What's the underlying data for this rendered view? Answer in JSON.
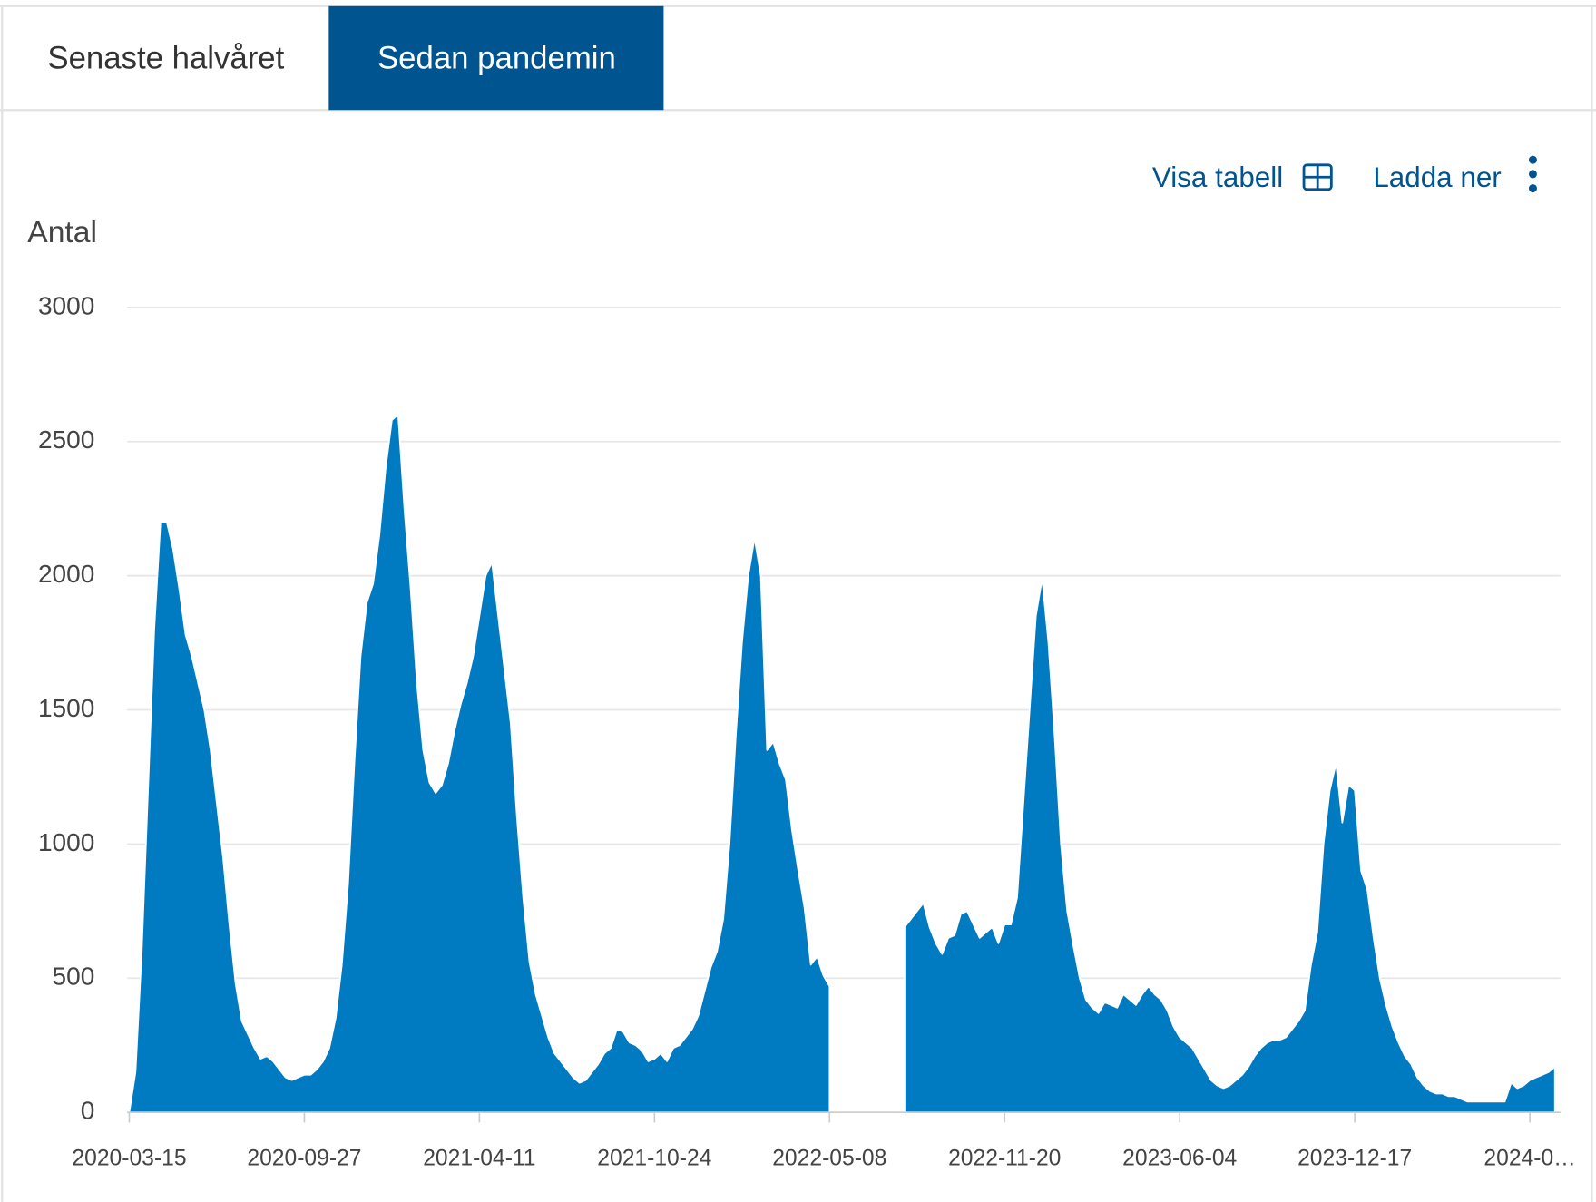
{
  "tabs": [
    "Senaste halvåret",
    "Sedan pandemin"
  ],
  "actions": [
    "Visa tabell",
    "Ladda ner"
  ],
  "chart_data": {
    "type": "area",
    "ylabel": "Antal",
    "color": "#007bc1",
    "ylim": [
      0,
      3000
    ],
    "yticks": [
      0,
      500,
      1000,
      1500,
      2000,
      2500,
      3000
    ],
    "grid": true,
    "categories": [
      "2020-03-15",
      null,
      null,
      null,
      null,
      null,
      null,
      null,
      null,
      null,
      null,
      null,
      null,
      null,
      null,
      null,
      null,
      null,
      null,
      null,
      null,
      null,
      null,
      null,
      null,
      null,
      null,
      null,
      "2020-09-27",
      null,
      null,
      null,
      null,
      null,
      null,
      null,
      null,
      null,
      null,
      null,
      null,
      null,
      null,
      null,
      null,
      null,
      null,
      null,
      null,
      null,
      null,
      null,
      null,
      null,
      null,
      null,
      "2021-04-11",
      null,
      null,
      null,
      null,
      null,
      null,
      null,
      null,
      null,
      null,
      null,
      null,
      null,
      null,
      null,
      null,
      null,
      null,
      null,
      null,
      null,
      null,
      null,
      null,
      null,
      null,
      null,
      "2021-10-24",
      null,
      null,
      null,
      null,
      null,
      null,
      null,
      null,
      null,
      null,
      null,
      null,
      null,
      null,
      null,
      null,
      null,
      null,
      null,
      null,
      null,
      null,
      null,
      null,
      null,
      null,
      null,
      "2022-05-08",
      null,
      null,
      null,
      null,
      null,
      null,
      null,
      null,
      null,
      null,
      null,
      null,
      null,
      null,
      null,
      null,
      null,
      null,
      null,
      null,
      null,
      null,
      null,
      null,
      null,
      null,
      null,
      "2022-11-20",
      null,
      null,
      null,
      null,
      null,
      null,
      null,
      null,
      null,
      null,
      null,
      null,
      null,
      null,
      null,
      null,
      null,
      null,
      null,
      null,
      null,
      null,
      null,
      null,
      null,
      null,
      null,
      "2023-06-04",
      null,
      null,
      null,
      null,
      null,
      null,
      null,
      null,
      null,
      null,
      null,
      null,
      null,
      null,
      null,
      null,
      null,
      null,
      null,
      null,
      null,
      null,
      null,
      null,
      null,
      null,
      null,
      "2023-12-17",
      null,
      null,
      null,
      null,
      null,
      null,
      null,
      null,
      null,
      null,
      null,
      null,
      null,
      null,
      null,
      null,
      null,
      null,
      null,
      null,
      null,
      null,
      null,
      null,
      null,
      null,
      null,
      "2024-0…",
      null,
      null,
      null,
      null
    ],
    "values": [
      0,
      150,
      600,
      1200,
      1800,
      2200,
      2200,
      2100,
      1950,
      1780,
      1700,
      1600,
      1500,
      1350,
      1150,
      950,
      700,
      480,
      340,
      290,
      240,
      200,
      210,
      190,
      160,
      130,
      120,
      130,
      140,
      140,
      160,
      190,
      240,
      350,
      550,
      850,
      1300,
      1700,
      1900,
      1970,
      2150,
      2400,
      2580,
      2600,
      2250,
      1950,
      1600,
      1350,
      1230,
      1190,
      1220,
      1300,
      1420,
      1520,
      1600,
      1700,
      1850,
      2000,
      2050,
      1850,
      1650,
      1450,
      1100,
      800,
      560,
      440,
      360,
      280,
      220,
      190,
      160,
      130,
      110,
      120,
      150,
      180,
      220,
      240,
      310,
      300,
      260,
      250,
      230,
      190,
      200,
      220,
      190,
      240,
      250,
      280,
      310,
      360,
      450,
      540,
      600,
      720,
      1000,
      1400,
      1750,
      2000,
      2140,
      2000,
      1350,
      1380,
      1300,
      1240,
      1050,
      900,
      760,
      550,
      580,
      510,
      470,
      null,
      null,
      null,
      null,
      null,
      null,
      null,
      null,
      null,
      null,
      null,
      690,
      720,
      750,
      780,
      690,
      630,
      590,
      650,
      660,
      740,
      750,
      700,
      650,
      670,
      690,
      630,
      700,
      700,
      800,
      1150,
      1500,
      1850,
      1990,
      1750,
      1400,
      1000,
      750,
      620,
      500,
      420,
      390,
      370,
      410,
      400,
      390,
      440,
      420,
      400,
      440,
      470,
      440,
      420,
      380,
      320,
      280,
      260,
      240,
      200,
      160,
      120,
      100,
      90,
      100,
      120,
      140,
      170,
      210,
      240,
      260,
      270,
      270,
      280,
      310,
      340,
      380,
      550,
      670,
      1000,
      1200,
      1300,
      1080,
      1220,
      1200,
      900,
      830,
      650,
      500,
      400,
      320,
      260,
      210,
      180,
      130,
      100,
      80,
      70,
      70,
      60,
      60,
      50,
      40,
      40,
      40,
      40,
      40,
      40,
      40,
      110,
      90,
      100,
      120,
      130,
      140,
      150,
      170
    ]
  }
}
